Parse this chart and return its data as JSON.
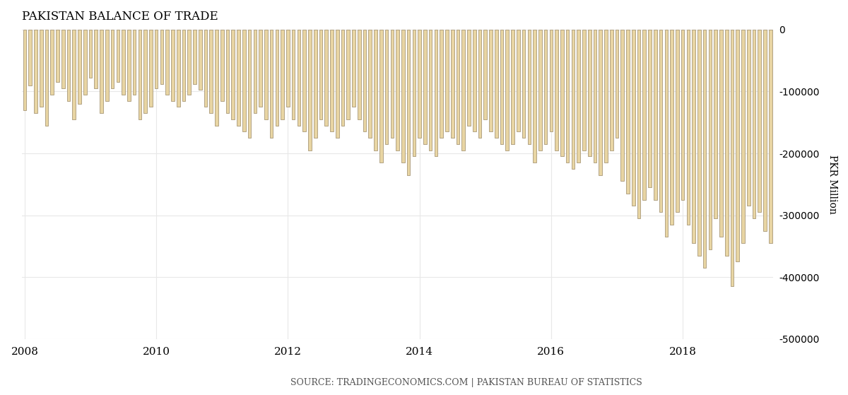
{
  "title": "PAKISTAN BALANCE OF TRADE",
  "ylabel": "PKR Million",
  "source": "SOURCE: TRADINGECONOMICS.COM | PAKISTAN BUREAU OF STATISTICS",
  "ylim": [
    -500000,
    0
  ],
  "yticks": [
    0,
    -100000,
    -200000,
    -300000,
    -400000,
    -500000
  ],
  "background_color": "#ffffff",
  "bar_face_color": "#e8d5a3",
  "bar_edge_color": "#a89878",
  "grid_color": "#e8e8e8",
  "values": [
    -130000,
    -90000,
    -135000,
    -125000,
    -155000,
    -105000,
    -85000,
    -95000,
    -115000,
    -145000,
    -120000,
    -105000,
    -78000,
    -95000,
    -135000,
    -115000,
    -95000,
    -85000,
    -105000,
    -115000,
    -105000,
    -145000,
    -135000,
    -125000,
    -95000,
    -88000,
    -105000,
    -115000,
    -125000,
    -115000,
    -105000,
    -88000,
    -97000,
    -125000,
    -135000,
    -155000,
    -115000,
    -135000,
    -145000,
    -155000,
    -165000,
    -175000,
    -135000,
    -125000,
    -145000,
    -175000,
    -155000,
    -145000,
    -125000,
    -145000,
    -155000,
    -165000,
    -195000,
    -175000,
    -145000,
    -155000,
    -165000,
    -175000,
    -155000,
    -145000,
    -125000,
    -145000,
    -165000,
    -175000,
    -195000,
    -215000,
    -185000,
    -175000,
    -195000,
    -215000,
    -235000,
    -205000,
    -175000,
    -185000,
    -195000,
    -205000,
    -175000,
    -165000,
    -175000,
    -185000,
    -195000,
    -155000,
    -165000,
    -175000,
    -145000,
    -165000,
    -175000,
    -185000,
    -195000,
    -185000,
    -165000,
    -175000,
    -185000,
    -215000,
    -195000,
    -185000,
    -165000,
    -195000,
    -205000,
    -215000,
    -225000,
    -215000,
    -195000,
    -205000,
    -215000,
    -235000,
    -215000,
    -195000,
    -175000,
    -245000,
    -265000,
    -285000,
    -305000,
    -275000,
    -255000,
    -275000,
    -295000,
    -335000,
    -315000,
    -295000,
    -275000,
    -315000,
    -345000,
    -365000,
    -385000,
    -355000,
    -305000,
    -335000,
    -365000,
    -415000,
    -375000,
    -345000,
    -285000,
    -305000,
    -295000,
    -325000,
    -345000
  ],
  "x_tick_positions": [
    0,
    24,
    48,
    72,
    96,
    120,
    144
  ],
  "x_tick_labels": [
    "2008",
    "2010",
    "2012",
    "2014",
    "2016",
    "2018",
    ""
  ]
}
